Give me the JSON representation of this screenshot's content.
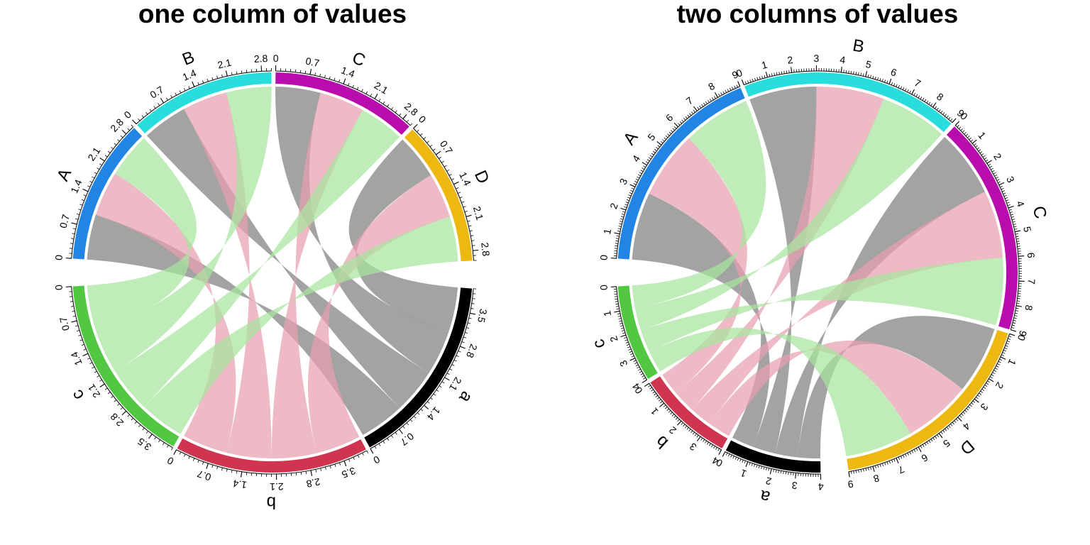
{
  "chart_data": [
    {
      "type": "chord",
      "title": "one column of values",
      "sectors": [
        {
          "name": "A",
          "color": "#2284E5",
          "max": 3,
          "ticks": [
            "0",
            "0.7",
            "1.4",
            "2.1",
            "2.8"
          ]
        },
        {
          "name": "B",
          "color": "#2ADDDD",
          "max": 3,
          "ticks": [
            "0",
            "0.7",
            "1.4",
            "2.1",
            "2.8"
          ]
        },
        {
          "name": "C",
          "color": "#B80DAC",
          "max": 3,
          "ticks": [
            "0",
            "0.7",
            "1.4",
            "2.1",
            "2.8"
          ]
        },
        {
          "name": "D",
          "color": "#EEB711",
          "max": 3,
          "ticks": [
            "0",
            "0.7",
            "1.4",
            "2.1",
            "2.8"
          ]
        },
        {
          "name": "a",
          "color": "#000000",
          "max": 4,
          "ticks": [
            "0",
            "0.7",
            "1.4",
            "2.1",
            "2.8",
            "3.5"
          ]
        },
        {
          "name": "b",
          "color": "#D0354F",
          "max": 4,
          "ticks": [
            "0",
            "0.7",
            "1.4",
            "2.1",
            "2.8",
            "3.5"
          ]
        },
        {
          "name": "c",
          "color": "#51C742",
          "max": 4,
          "ticks": [
            "0",
            "0.7",
            "1.4",
            "2.1",
            "2.8",
            "3.5"
          ]
        }
      ],
      "links": [
        {
          "from": "A",
          "to": "a",
          "value": 1,
          "color": "#808080"
        },
        {
          "from": "A",
          "to": "b",
          "value": 1,
          "color": "#E8A0AE"
        },
        {
          "from": "A",
          "to": "c",
          "value": 1,
          "color": "#A8E5A0"
        },
        {
          "from": "B",
          "to": "a",
          "value": 1,
          "color": "#808080"
        },
        {
          "from": "B",
          "to": "b",
          "value": 1,
          "color": "#E8A0AE"
        },
        {
          "from": "B",
          "to": "c",
          "value": 1,
          "color": "#A8E5A0"
        },
        {
          "from": "C",
          "to": "a",
          "value": 1,
          "color": "#808080"
        },
        {
          "from": "C",
          "to": "b",
          "value": 1,
          "color": "#E8A0AE"
        },
        {
          "from": "C",
          "to": "c",
          "value": 1,
          "color": "#A8E5A0"
        },
        {
          "from": "D",
          "to": "a",
          "value": 1,
          "color": "#808080"
        },
        {
          "from": "D",
          "to": "b",
          "value": 1,
          "color": "#E8A0AE"
        },
        {
          "from": "D",
          "to": "c",
          "value": 1,
          "color": "#A8E5A0"
        }
      ]
    },
    {
      "type": "chord",
      "title": "two columns of values",
      "sectors": [
        {
          "name": "A",
          "color": "#2284E5",
          "max": 9,
          "ticks": [
            "0",
            "1",
            "2",
            "3",
            "4",
            "5",
            "6",
            "7",
            "8",
            "9"
          ]
        },
        {
          "name": "B",
          "color": "#2ADDDD",
          "max": 9,
          "ticks": [
            "0",
            "1",
            "2",
            "3",
            "4",
            "5",
            "6",
            "7",
            "8",
            "9"
          ]
        },
        {
          "name": "C",
          "color": "#B80DAC",
          "max": 9,
          "ticks": [
            "0",
            "1",
            "2",
            "3",
            "4",
            "5",
            "6",
            "7",
            "8",
            "9"
          ]
        },
        {
          "name": "D",
          "color": "#EEB711",
          "max": 9,
          "ticks": [
            "0",
            "1",
            "2",
            "3",
            "4",
            "5",
            "6",
            "7",
            "8",
            "9"
          ]
        },
        {
          "name": "a",
          "color": "#000000",
          "max": 4,
          "ticks": [
            "0",
            "1",
            "2",
            "3",
            "4"
          ]
        },
        {
          "name": "b",
          "color": "#D0354F",
          "max": 4,
          "ticks": [
            "0",
            "1",
            "2",
            "3",
            "4"
          ]
        },
        {
          "name": "c",
          "color": "#51C742",
          "max": 4,
          "ticks": [
            "0",
            "1",
            "2",
            "3",
            "4"
          ]
        }
      ],
      "links": [
        {
          "from": "A",
          "to": "a",
          "value": 3,
          "value2": 1,
          "color": "#808080"
        },
        {
          "from": "A",
          "to": "b",
          "value": 3,
          "value2": 1,
          "color": "#E8A0AE"
        },
        {
          "from": "A",
          "to": "c",
          "value": 3,
          "value2": 1,
          "color": "#A8E5A0"
        },
        {
          "from": "B",
          "to": "a",
          "value": 3,
          "value2": 1,
          "color": "#808080"
        },
        {
          "from": "B",
          "to": "b",
          "value": 3,
          "value2": 1,
          "color": "#E8A0AE"
        },
        {
          "from": "B",
          "to": "c",
          "value": 3,
          "value2": 1,
          "color": "#A8E5A0"
        },
        {
          "from": "C",
          "to": "a",
          "value": 3,
          "value2": 1,
          "color": "#808080"
        },
        {
          "from": "C",
          "to": "b",
          "value": 3,
          "value2": 1,
          "color": "#E8A0AE"
        },
        {
          "from": "C",
          "to": "c",
          "value": 3,
          "value2": 1,
          "color": "#A8E5A0"
        },
        {
          "from": "D",
          "to": "a",
          "value": 3,
          "value2": 1,
          "color": "#808080"
        },
        {
          "from": "D",
          "to": "b",
          "value": 3,
          "value2": 1,
          "color": "#E8A0AE"
        },
        {
          "from": "D",
          "to": "c",
          "value": 3,
          "value2": 1,
          "color": "#A8E5A0"
        }
      ]
    }
  ]
}
